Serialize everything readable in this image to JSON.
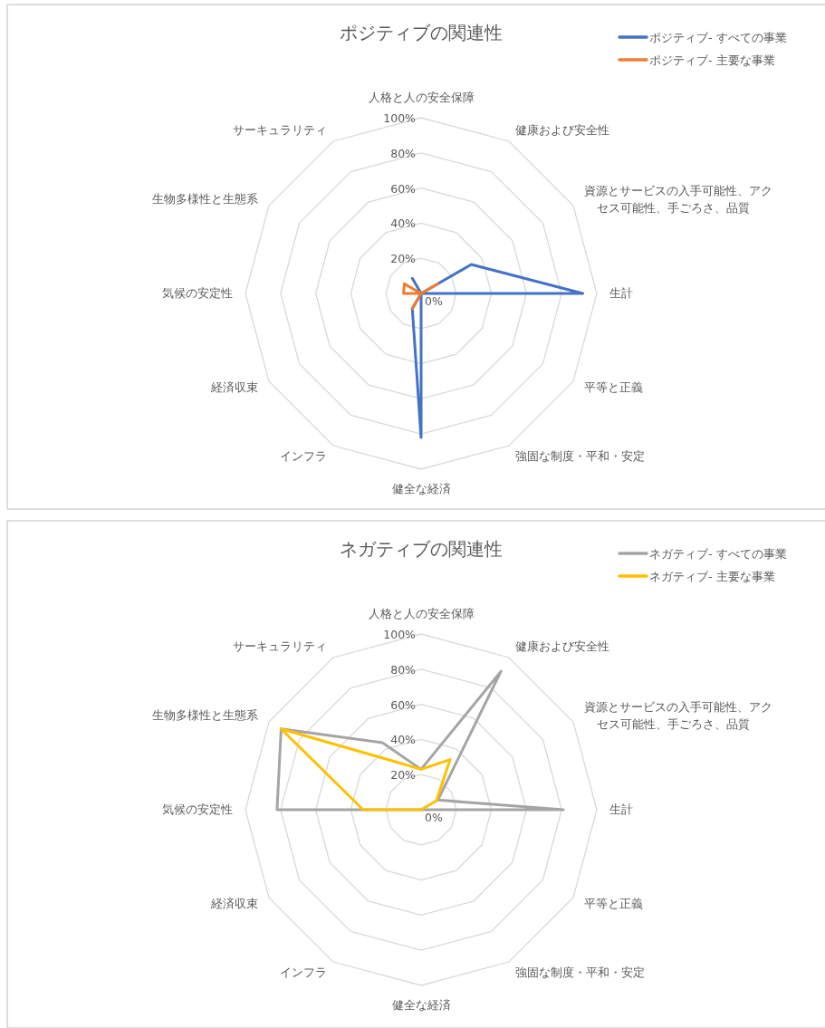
{
  "chart_data": [
    {
      "type": "radar",
      "title": "ポジティブの関連性",
      "categories": [
        "人格と人の安全保障",
        "健康および安全性",
        "資源とサービスの入手可能性、アクセス可能性、手ごろさ、品質",
        "生計",
        "平等と正義",
        "強固な制度・平和・安定",
        "健全な経済",
        "インフラ",
        "経済収束",
        "気候の安定性",
        "生物多様性と生態系",
        "サーキュラリティ"
      ],
      "ylim": [
        0,
        100
      ],
      "yticks": [
        {
          "value": 0,
          "label": "0%"
        },
        {
          "value": 20,
          "label": "20%"
        },
        {
          "value": 40,
          "label": "40%"
        },
        {
          "value": 60,
          "label": "60%"
        },
        {
          "value": 80,
          "label": "80%"
        },
        {
          "value": 100,
          "label": "100%"
        }
      ],
      "legend": "top right",
      "series": [
        {
          "name": "ポジティブ- すべての事業",
          "color": "#4472c4",
          "values": [
            0,
            0,
            33,
            92,
            0,
            0,
            82,
            10,
            0,
            0,
            0,
            10
          ]
        },
        {
          "name": "ポジティブ- 主要な事業",
          "color": "#ed7d31",
          "values": [
            0,
            0,
            11,
            0,
            0,
            0,
            0,
            10,
            0,
            10,
            11,
            0
          ]
        }
      ]
    },
    {
      "type": "radar",
      "title": "ネガティブの関連性",
      "categories": [
        "人格と人の安全保障",
        "健康および安全性",
        "資源とサービスの入手可能性、アクセス可能性、手ごろさ、品質",
        "生計",
        "平等と正義",
        "強固な制度・平和・安定",
        "健全な経済",
        "インフラ",
        "経済収束",
        "気候の安定性",
        "生物多様性と生態系",
        "サーキュラリティ"
      ],
      "ylim": [
        0,
        100
      ],
      "yticks": [
        {
          "value": 0,
          "label": "0%"
        },
        {
          "value": 20,
          "label": "20%"
        },
        {
          "value": 40,
          "label": "40%"
        },
        {
          "value": 60,
          "label": "60%"
        },
        {
          "value": 80,
          "label": "80%"
        },
        {
          "value": 100,
          "label": "100%"
        }
      ],
      "legend": "top right",
      "series": [
        {
          "name": "ネガティブ- すべての事業",
          "color": "#a5a5a5",
          "values": [
            23,
            91,
            11,
            81,
            0,
            0,
            0,
            0,
            0,
            82,
            92,
            44
          ]
        },
        {
          "name": "ネガティブ- 主要な事業",
          "color": "#ffc000",
          "values": [
            23,
            33,
            10,
            0,
            0,
            0,
            0,
            0,
            0,
            33,
            92,
            32
          ]
        }
      ]
    }
  ]
}
